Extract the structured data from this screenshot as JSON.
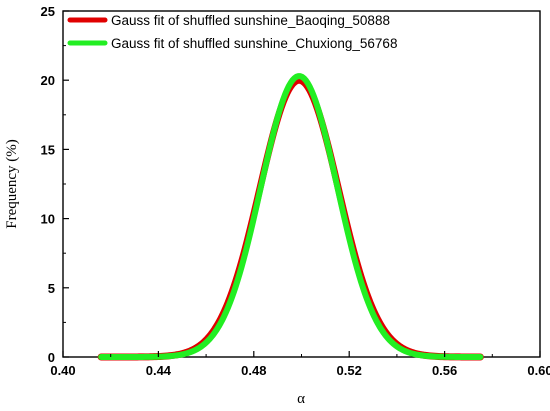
{
  "chart_data": {
    "type": "line",
    "title": "",
    "xlabel": "α",
    "ylabel": "Frequency (%)",
    "xlim": [
      0.4,
      0.6
    ],
    "ylim": [
      0,
      25
    ],
    "x_ticks": [
      "0.40",
      "0.44",
      "0.48",
      "0.52",
      "0.56",
      "0.60"
    ],
    "y_ticks": [
      "0",
      "5",
      "10",
      "15",
      "20",
      "25"
    ],
    "grid": false,
    "legend_position": "top-left",
    "series": [
      {
        "name": "Gauss fit of shuffled sunshine_Baoqing_50888",
        "color": "#e00000",
        "x_range": [
          0.416,
          0.575
        ],
        "peak": 20.0,
        "center": 0.499,
        "sigma": 0.0165,
        "points": [
          [
            0.416,
            0.0
          ],
          [
            0.44,
            0.3
          ],
          [
            0.46,
            2.7
          ],
          [
            0.48,
            10.3
          ],
          [
            0.49,
            16.4
          ],
          [
            0.499,
            20.0
          ],
          [
            0.51,
            16.5
          ],
          [
            0.52,
            10.4
          ],
          [
            0.54,
            2.7
          ],
          [
            0.56,
            0.3
          ],
          [
            0.575,
            0.0
          ]
        ]
      },
      {
        "name": "Gauss fit of shuffled sunshine_Chuxiong_56768",
        "color": "#22ee22",
        "x_range": [
          0.416,
          0.575
        ],
        "peak": 20.3,
        "center": 0.499,
        "sigma": 0.016,
        "points": [
          [
            0.416,
            0.0
          ],
          [
            0.44,
            0.3
          ],
          [
            0.46,
            2.7
          ],
          [
            0.48,
            10.4
          ],
          [
            0.49,
            16.7
          ],
          [
            0.499,
            20.3
          ],
          [
            0.51,
            16.7
          ],
          [
            0.52,
            10.4
          ],
          [
            0.54,
            2.7
          ],
          [
            0.56,
            0.3
          ],
          [
            0.575,
            0.0
          ]
        ]
      }
    ]
  }
}
